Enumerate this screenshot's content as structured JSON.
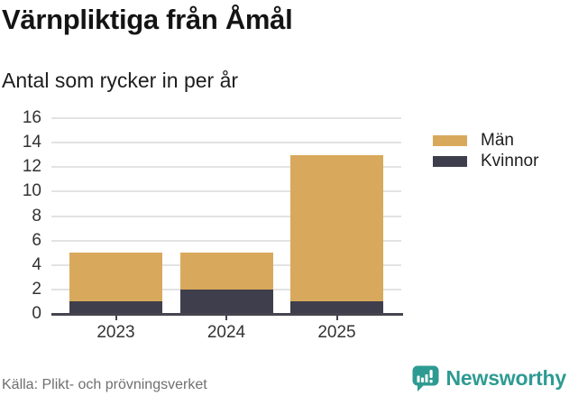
{
  "title": "Värnpliktiga från Åmål",
  "subtitle": "Antal som rycker in per år",
  "source": "Källa: Plikt- och prövningsverket",
  "brand": {
    "wordmark": "Newsworthy",
    "icon": "speech-bubble-bar-chart-icon",
    "color": "#2e9b92"
  },
  "colors": {
    "men": "#d8a95c",
    "women": "#3f3e4c",
    "gridline": "#e3e3e3",
    "axis": "#46454f",
    "tick_text": "#333333",
    "muted_text": "#6f6f6f"
  },
  "legend": {
    "items": [
      {
        "label": "Män",
        "color": "#d8a95c"
      },
      {
        "label": "Kvinnor",
        "color": "#3f3e4c"
      }
    ]
  },
  "chart_data": {
    "type": "bar",
    "stacked": true,
    "title": "Värnpliktiga från Åmål",
    "subtitle": "Antal som rycker in per år",
    "categories": [
      "2023",
      "2024",
      "2025"
    ],
    "series": [
      {
        "name": "Kvinnor",
        "color": "#3f3e4c",
        "values": [
          1,
          2,
          1
        ]
      },
      {
        "name": "Män",
        "color": "#d8a95c",
        "values": [
          4,
          3,
          12
        ]
      }
    ],
    "totals": [
      5,
      5,
      13
    ],
    "ylim": [
      0,
      16
    ],
    "yticks": [
      0,
      2,
      4,
      6,
      8,
      10,
      12,
      14,
      16
    ],
    "grid": true,
    "legend_position": "right",
    "xlabel": "",
    "ylabel": ""
  }
}
